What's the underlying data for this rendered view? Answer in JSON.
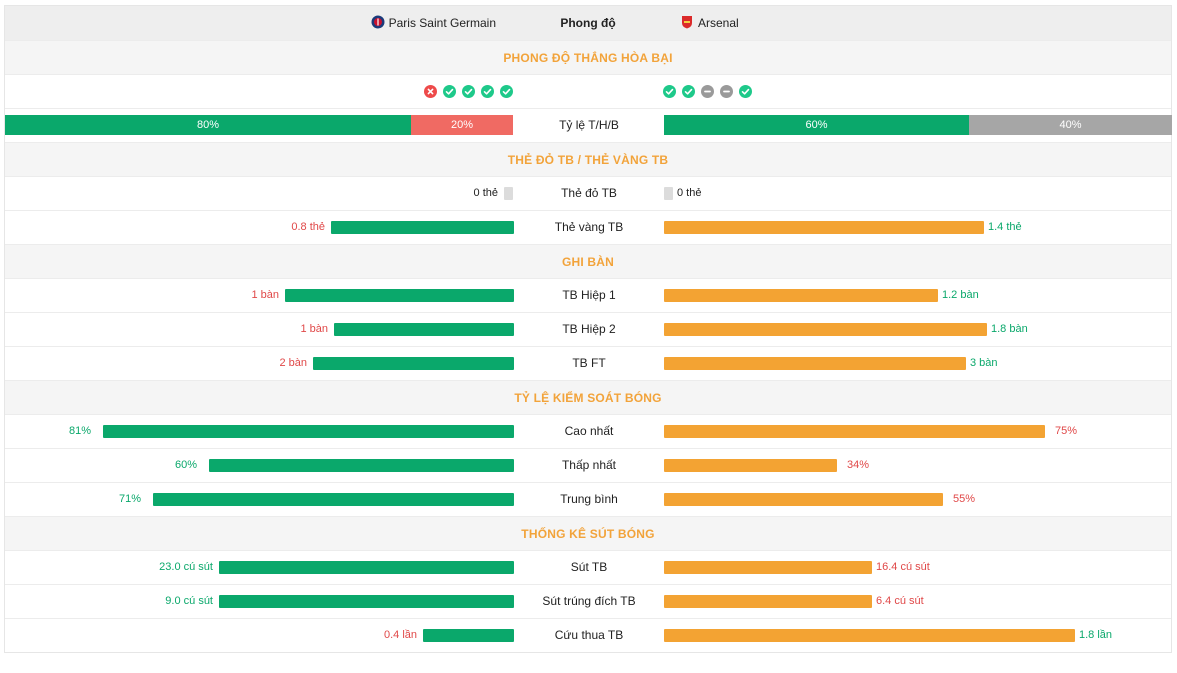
{
  "header": {
    "team_home": "Paris Saint Germain",
    "center_title": "Phong độ",
    "team_away": "Arsenal"
  },
  "colors": {
    "home_bar": "#0aa86b",
    "away_bar": "#f3a333",
    "loss": "#ee4a4a",
    "win": "#1ec98a",
    "draw": "#9a9a9a",
    "accent": "#f2a33a"
  },
  "sections": {
    "form": "PHONG ĐỘ THẮNG HÒA BẠI",
    "cards": "THẺ ĐỎ TB / THẺ VÀNG TB",
    "goals": "GHI BÀN",
    "possession": "TỶ LỆ KIỂM SOÁT BÓNG",
    "shots": "THỐNG KÊ SÚT BÓNG"
  },
  "form": {
    "home": [
      "L",
      "W",
      "W",
      "W",
      "W"
    ],
    "away": [
      "W",
      "W",
      "D",
      "D",
      "W"
    ]
  },
  "whl": {
    "label": "Tỷ lệ T/H/B",
    "home": {
      "win_pct": 80,
      "win_label": "80%",
      "lose_pct": 20,
      "lose_label": "20%"
    },
    "away": {
      "win_pct": 60,
      "win_label": "60%",
      "draw_pct": 40,
      "draw_label": "40%"
    }
  },
  "cards": {
    "red": {
      "label": "Thẻ đỏ TB",
      "home": "0 thẻ",
      "away": "0 thẻ"
    },
    "yellow": {
      "label": "Thẻ vàng TB",
      "home": "0.8 thẻ",
      "home_frac": 0.36,
      "away": "1.4 thẻ",
      "away_frac": 0.63
    }
  },
  "goals": {
    "h1": {
      "label": "TB Hiệp 1",
      "home": "1 bàn",
      "home_frac": 0.45,
      "away": "1.2 bàn",
      "away_frac": 0.54
    },
    "h2": {
      "label": "TB Hiệp 2",
      "home": "1 bàn",
      "home_frac": 0.355,
      "away": "1.8 bàn",
      "away_frac": 0.635
    },
    "ft": {
      "label": "TB FT",
      "home": "2 bàn",
      "home_frac": 0.395,
      "away": "3 bàn",
      "away_frac": 0.595
    }
  },
  "possession": {
    "max": {
      "label": "Cao nhất",
      "home": "81%",
      "home_frac": 0.81,
      "away": "75%",
      "away_frac": 0.75
    },
    "min": {
      "label": "Thấp nhất",
      "home": "60%",
      "home_frac": 0.6,
      "away": "34%",
      "away_frac": 0.34
    },
    "avg": {
      "label": "Trung bình",
      "home": "71%",
      "home_frac": 0.71,
      "away": "55%",
      "away_frac": 0.55
    }
  },
  "shots": {
    "avg": {
      "label": "Sút TB",
      "home": "23.0 cú sút",
      "home_frac": 0.58,
      "away": "16.4 cú sút",
      "away_frac": 0.41
    },
    "on_target": {
      "label": "Sút trúng đích TB",
      "home": "9.0 cú sút",
      "home_frac": 0.58,
      "away": "6.4 cú sút",
      "away_frac": 0.41
    },
    "saves": {
      "label": "Cứu thua TB",
      "home": "0.4 lần",
      "home_frac": 0.18,
      "away": "1.8 lần",
      "away_frac": 0.81
    }
  }
}
